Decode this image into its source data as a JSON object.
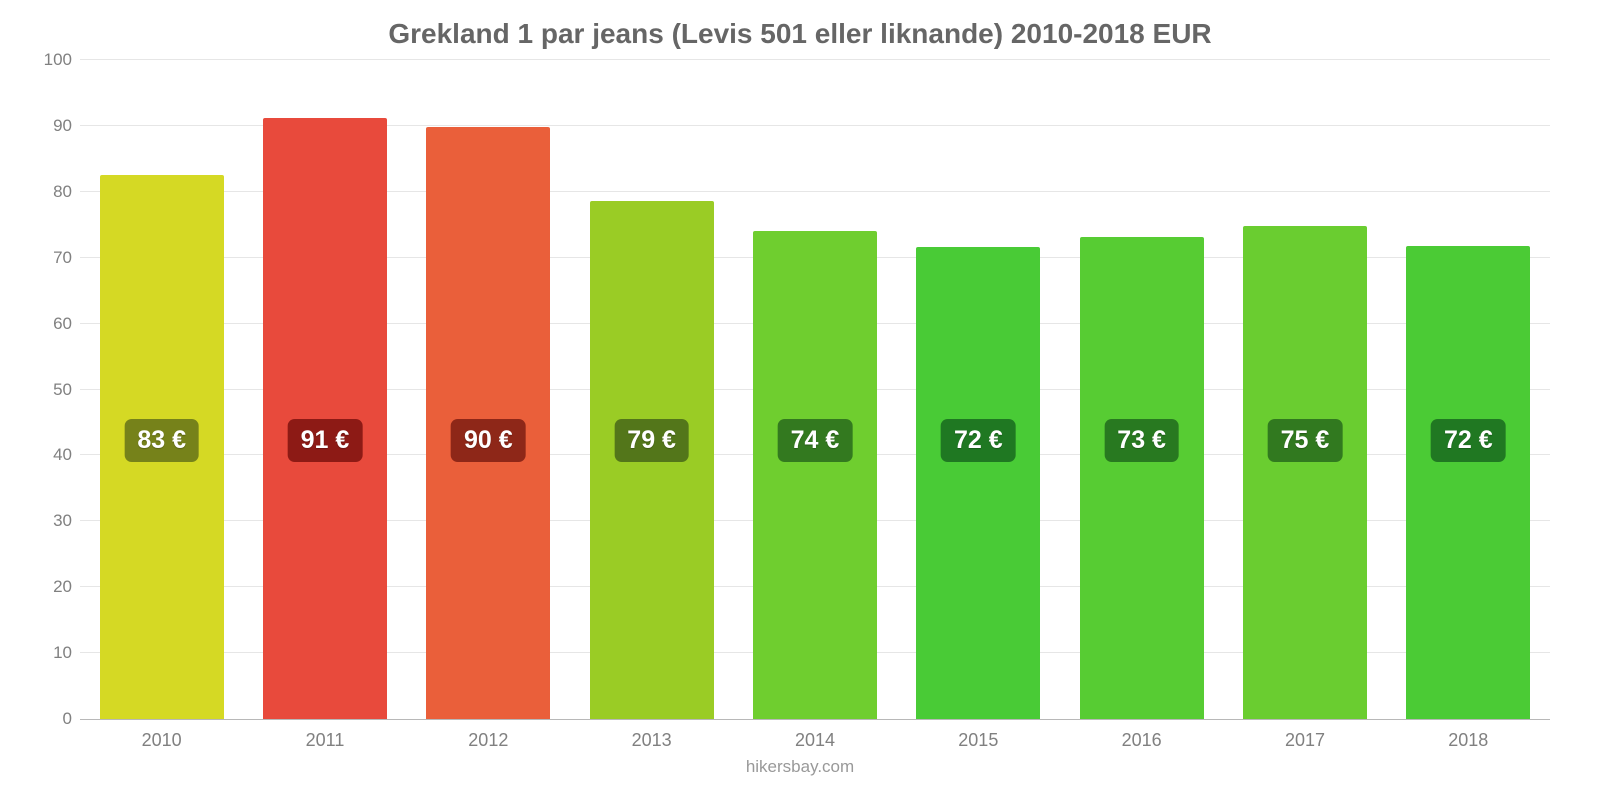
{
  "chart": {
    "type": "bar",
    "title": "Grekland 1 par jeans (Levis 501 eller liknande) 2010-2018 EUR",
    "title_color": "#666666",
    "title_fontsize": 28,
    "source": "hikersbay.com",
    "source_color": "#999999",
    "background_color": "#ffffff",
    "grid_color": "#e6e6e6",
    "axis_color": "#b8b8b8",
    "tick_label_color": "#808080",
    "tick_fontsize": 17,
    "value_label_fontsize": 25,
    "bar_width_ratio": 0.76,
    "ylim": [
      0,
      100
    ],
    "ytick_step": 10,
    "yticks": [
      0,
      10,
      20,
      30,
      40,
      50,
      60,
      70,
      80,
      90,
      100
    ],
    "categories": [
      "2010",
      "2011",
      "2012",
      "2013",
      "2014",
      "2015",
      "2016",
      "2017",
      "2018"
    ],
    "values": [
      82.5,
      91.2,
      89.8,
      78.6,
      74.0,
      71.6,
      73.2,
      74.8,
      71.8
    ],
    "value_labels": [
      "83 €",
      "91 €",
      "90 €",
      "79 €",
      "74 €",
      "72 €",
      "73 €",
      "75 €",
      "72 €"
    ],
    "bar_colors": [
      "#d5d924",
      "#e84a3c",
      "#ea5f3a",
      "#9acc25",
      "#6fce2f",
      "#49cb36",
      "#57cc33",
      "#6acd30",
      "#4bcb35"
    ],
    "badge_colors": [
      "#76821a",
      "#8d1a15",
      "#8e2718",
      "#53761a",
      "#33791f",
      "#1f7822",
      "#287920",
      "#31791f",
      "#207822"
    ],
    "badge_center_value": 42
  }
}
